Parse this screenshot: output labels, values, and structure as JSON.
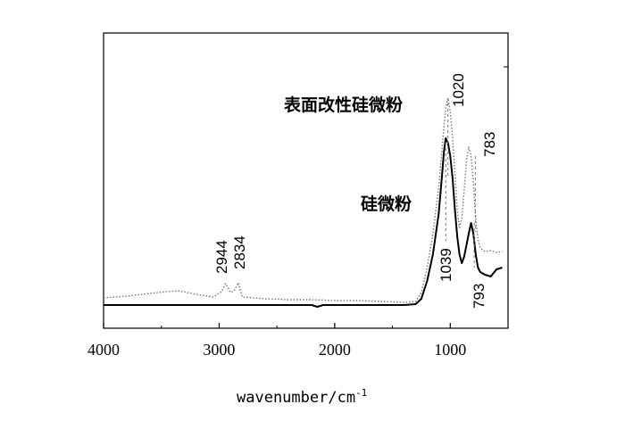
{
  "chart_data": {
    "type": "line",
    "title": "",
    "xlabel": "wavenumber/cm",
    "xlabel_superscript": "-1",
    "ylabel": "",
    "xlim": [
      4000,
      500
    ],
    "x_reversed": true,
    "x_ticks": [
      4000,
      3000,
      2000,
      1000
    ],
    "x_tick_labels": [
      "4000",
      "3000",
      "2000",
      "1000"
    ],
    "grid": false,
    "series": [
      {
        "name": "表面改性硅微粉",
        "style": "dotted",
        "color": "#777777",
        "points": [
          [
            4000,
            334
          ],
          [
            3800,
            332
          ],
          [
            3600,
            329
          ],
          [
            3450,
            327
          ],
          [
            3350,
            326
          ],
          [
            3200,
            330
          ],
          [
            3050,
            333
          ],
          [
            2980,
            327
          ],
          [
            2944,
            318
          ],
          [
            2900,
            328
          ],
          [
            2870,
            326
          ],
          [
            2834,
            317
          ],
          [
            2800,
            333
          ],
          [
            2600,
            335
          ],
          [
            2400,
            336
          ],
          [
            2200,
            336
          ],
          [
            2000,
            337
          ],
          [
            1800,
            337
          ],
          [
            1600,
            338
          ],
          [
            1400,
            339
          ],
          [
            1300,
            338
          ],
          [
            1250,
            328
          ],
          [
            1200,
            300
          ],
          [
            1150,
            262
          ],
          [
            1100,
            210
          ],
          [
            1060,
            150
          ],
          [
            1040,
            122
          ],
          [
            1020,
            110
          ],
          [
            1000,
            125
          ],
          [
            980,
            155
          ],
          [
            960,
            195
          ],
          [
            940,
            235
          ],
          [
            920,
            255
          ],
          [
            900,
            245
          ],
          [
            880,
            215
          ],
          [
            860,
            180
          ],
          [
            840,
            165
          ],
          [
            820,
            175
          ],
          [
            800,
            205
          ],
          [
            780,
            245
          ],
          [
            760,
            268
          ],
          [
            740,
            278
          ],
          [
            700,
            282
          ],
          [
            650,
            281
          ],
          [
            600,
            283
          ],
          [
            550,
            282
          ]
        ]
      },
      {
        "name": "硅微粉",
        "style": "solid",
        "color": "#000000",
        "points": [
          [
            4000,
            342
          ],
          [
            3500,
            342
          ],
          [
            3000,
            342
          ],
          [
            2500,
            342
          ],
          [
            2200,
            342
          ],
          [
            2150,
            344
          ],
          [
            2100,
            342
          ],
          [
            2000,
            342
          ],
          [
            1500,
            342
          ],
          [
            1400,
            342
          ],
          [
            1300,
            341
          ],
          [
            1250,
            335
          ],
          [
            1200,
            315
          ],
          [
            1150,
            285
          ],
          [
            1100,
            240
          ],
          [
            1070,
            195
          ],
          [
            1055,
            170
          ],
          [
            1039,
            155
          ],
          [
            1020,
            160
          ],
          [
            1000,
            175
          ],
          [
            980,
            200
          ],
          [
            960,
            235
          ],
          [
            940,
            265
          ],
          [
            920,
            285
          ],
          [
            900,
            295
          ],
          [
            880,
            288
          ],
          [
            860,
            275
          ],
          [
            840,
            262
          ],
          [
            820,
            250
          ],
          [
            800,
            262
          ],
          [
            793,
            270
          ],
          [
            780,
            285
          ],
          [
            760,
            300
          ],
          [
            740,
            305
          ],
          [
            700,
            308
          ],
          [
            650,
            310
          ],
          [
            600,
            302
          ],
          [
            550,
            300
          ]
        ]
      }
    ],
    "annotations": [
      {
        "label": "2944",
        "x": 2944
      },
      {
        "label": "2834",
        "x": 2834
      },
      {
        "label": "1020",
        "x": 1020
      },
      {
        "label": "783",
        "x": 783
      },
      {
        "label": "1039",
        "x": 1039
      },
      {
        "label": "793",
        "x": 793
      }
    ]
  }
}
